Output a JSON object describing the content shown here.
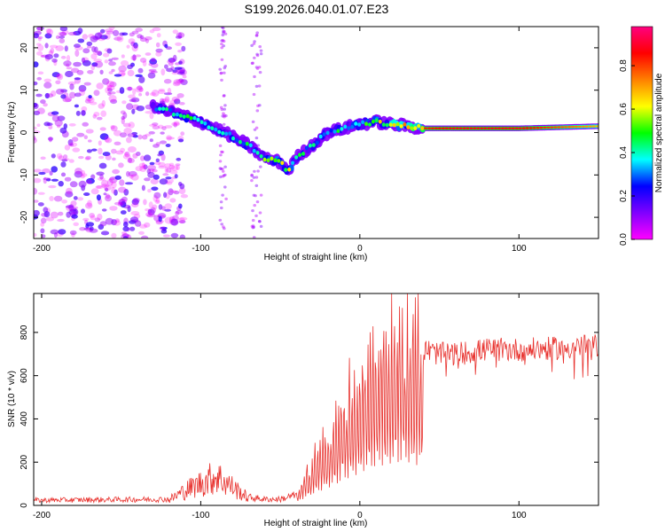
{
  "title": "S199.2026.040.01.07.E23",
  "chart_data": [
    {
      "type": "heatmap",
      "name": "spectrogram",
      "xlabel": "Height of straight line (km)",
      "ylabel": "Frequency (Hz)",
      "xlim": [
        -205,
        150
      ],
      "ylim": [
        -25,
        25
      ],
      "xticks": [
        -200,
        -100,
        0,
        100
      ],
      "yticks": [
        -20,
        -10,
        0,
        10,
        20
      ],
      "colorbar": {
        "label": "Normalized spectral amplitude",
        "range": [
          0,
          0.98
        ],
        "ticks": [
          0.0,
          0.2,
          0.4,
          0.6,
          0.8
        ],
        "colormap": [
          "#ff00ff",
          "#8000ff",
          "#0000ff",
          "#00ffff",
          "#00ff00",
          "#ffff00",
          "#ff8000",
          "#ff0000",
          "#ff0080"
        ]
      },
      "signal_trace": {
        "description_points_x_km": [
          -130,
          -115,
          -100,
          -85,
          -70,
          -60,
          -50,
          -45,
          -40,
          -30,
          -20,
          -10,
          0,
          10,
          20,
          30,
          40,
          60,
          100,
          150
        ],
        "frequency_hz": [
          6,
          4.5,
          2.5,
          0,
          -3,
          -6,
          -7,
          -9,
          -6,
          -3,
          0,
          1,
          2,
          2.5,
          2,
          1.5,
          1,
          1,
          1,
          1.5
        ],
        "amplitude": [
          0.35,
          0.4,
          0.4,
          0.35,
          0.4,
          0.45,
          0.5,
          0.6,
          0.4,
          0.35,
          0.35,
          0.4,
          0.45,
          0.5,
          0.6,
          0.7,
          0.85,
          0.9,
          0.9,
          0.7
        ]
      },
      "noise_region_x_km": [
        -205,
        -110
      ]
    },
    {
      "type": "line",
      "name": "snr",
      "xlabel": "Height of straight line (km)",
      "ylabel": "SNR (10 * v/v)",
      "xlim": [
        -205,
        150
      ],
      "ylim": [
        0,
        980
      ],
      "xticks": [
        -200,
        -100,
        0,
        100
      ],
      "yticks": [
        0,
        200,
        400,
        600,
        800
      ],
      "color": "#e8322e",
      "envelope_x_km": [
        -205,
        -120,
        -110,
        -100,
        -90,
        -80,
        -70,
        -60,
        -50,
        -40,
        -30,
        -20,
        -10,
        0,
        10,
        20,
        30,
        40,
        50,
        60,
        70,
        80,
        100,
        120,
        150
      ],
      "envelope_snr": [
        25,
        30,
        80,
        120,
        160,
        100,
        40,
        30,
        30,
        50,
        200,
        320,
        450,
        600,
        700,
        780,
        780,
        720,
        700,
        700,
        710,
        720,
        720,
        725,
        740
      ]
    }
  ]
}
